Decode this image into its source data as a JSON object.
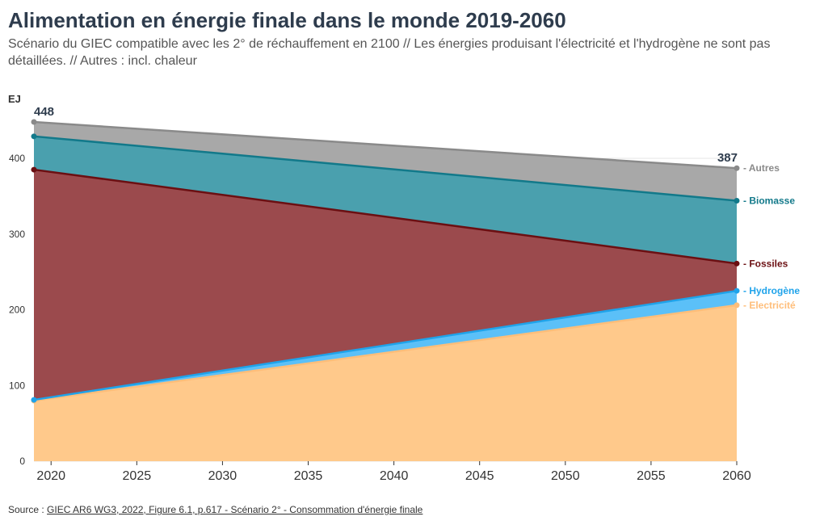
{
  "title": "Alimentation en énergie finale dans le monde 2019-2060",
  "subtitle": "Scénario du GIEC compatible avec les 2° de réchauffement en 2100 // Les énergies produisant l'électricité et l'hydrogène ne sont pas détaillées. // Autres : incl. chaleur",
  "source": {
    "prefix": "Source : ",
    "link_text": "GIEC AR6 WG3, 2022, Figure 6.1, p.617 - Scénario 2° - Consommation d'énergie finale"
  },
  "chart_data": {
    "type": "area",
    "stacked": true,
    "ylabel": "EJ",
    "x": [
      2019,
      2060
    ],
    "x_ticks": [
      2020,
      2025,
      2030,
      2035,
      2040,
      2045,
      2050,
      2055,
      2060
    ],
    "y_ticks": [
      0,
      100,
      200,
      300,
      400
    ],
    "ylim": [
      0,
      448
    ],
    "grid": "horizontal",
    "legend_placement": "inline-right",
    "series": [
      {
        "name": "Electricité",
        "values": [
          80,
          206
        ],
        "color": "#ffc98b",
        "line": "#ffbe7a"
      },
      {
        "name": "Hydrogène",
        "values": [
          1,
          19
        ],
        "color": "#5bc0f8",
        "line": "#1fa3ea"
      },
      {
        "name": "Fossiles",
        "values": [
          304,
          36
        ],
        "color": "#9b4a4d",
        "line": "#6b0f12"
      },
      {
        "name": "Biomasse",
        "values": [
          44,
          83
        ],
        "color": "#4aa0ae",
        "line": "#12798a"
      },
      {
        "name": "Autres",
        "values": [
          19,
          43
        ],
        "color": "#a8a8a8",
        "line": "#8a8a8a"
      }
    ],
    "total_labels": [
      {
        "x": 2019,
        "text": "448"
      },
      {
        "x": 2060,
        "text": "387"
      }
    ]
  }
}
